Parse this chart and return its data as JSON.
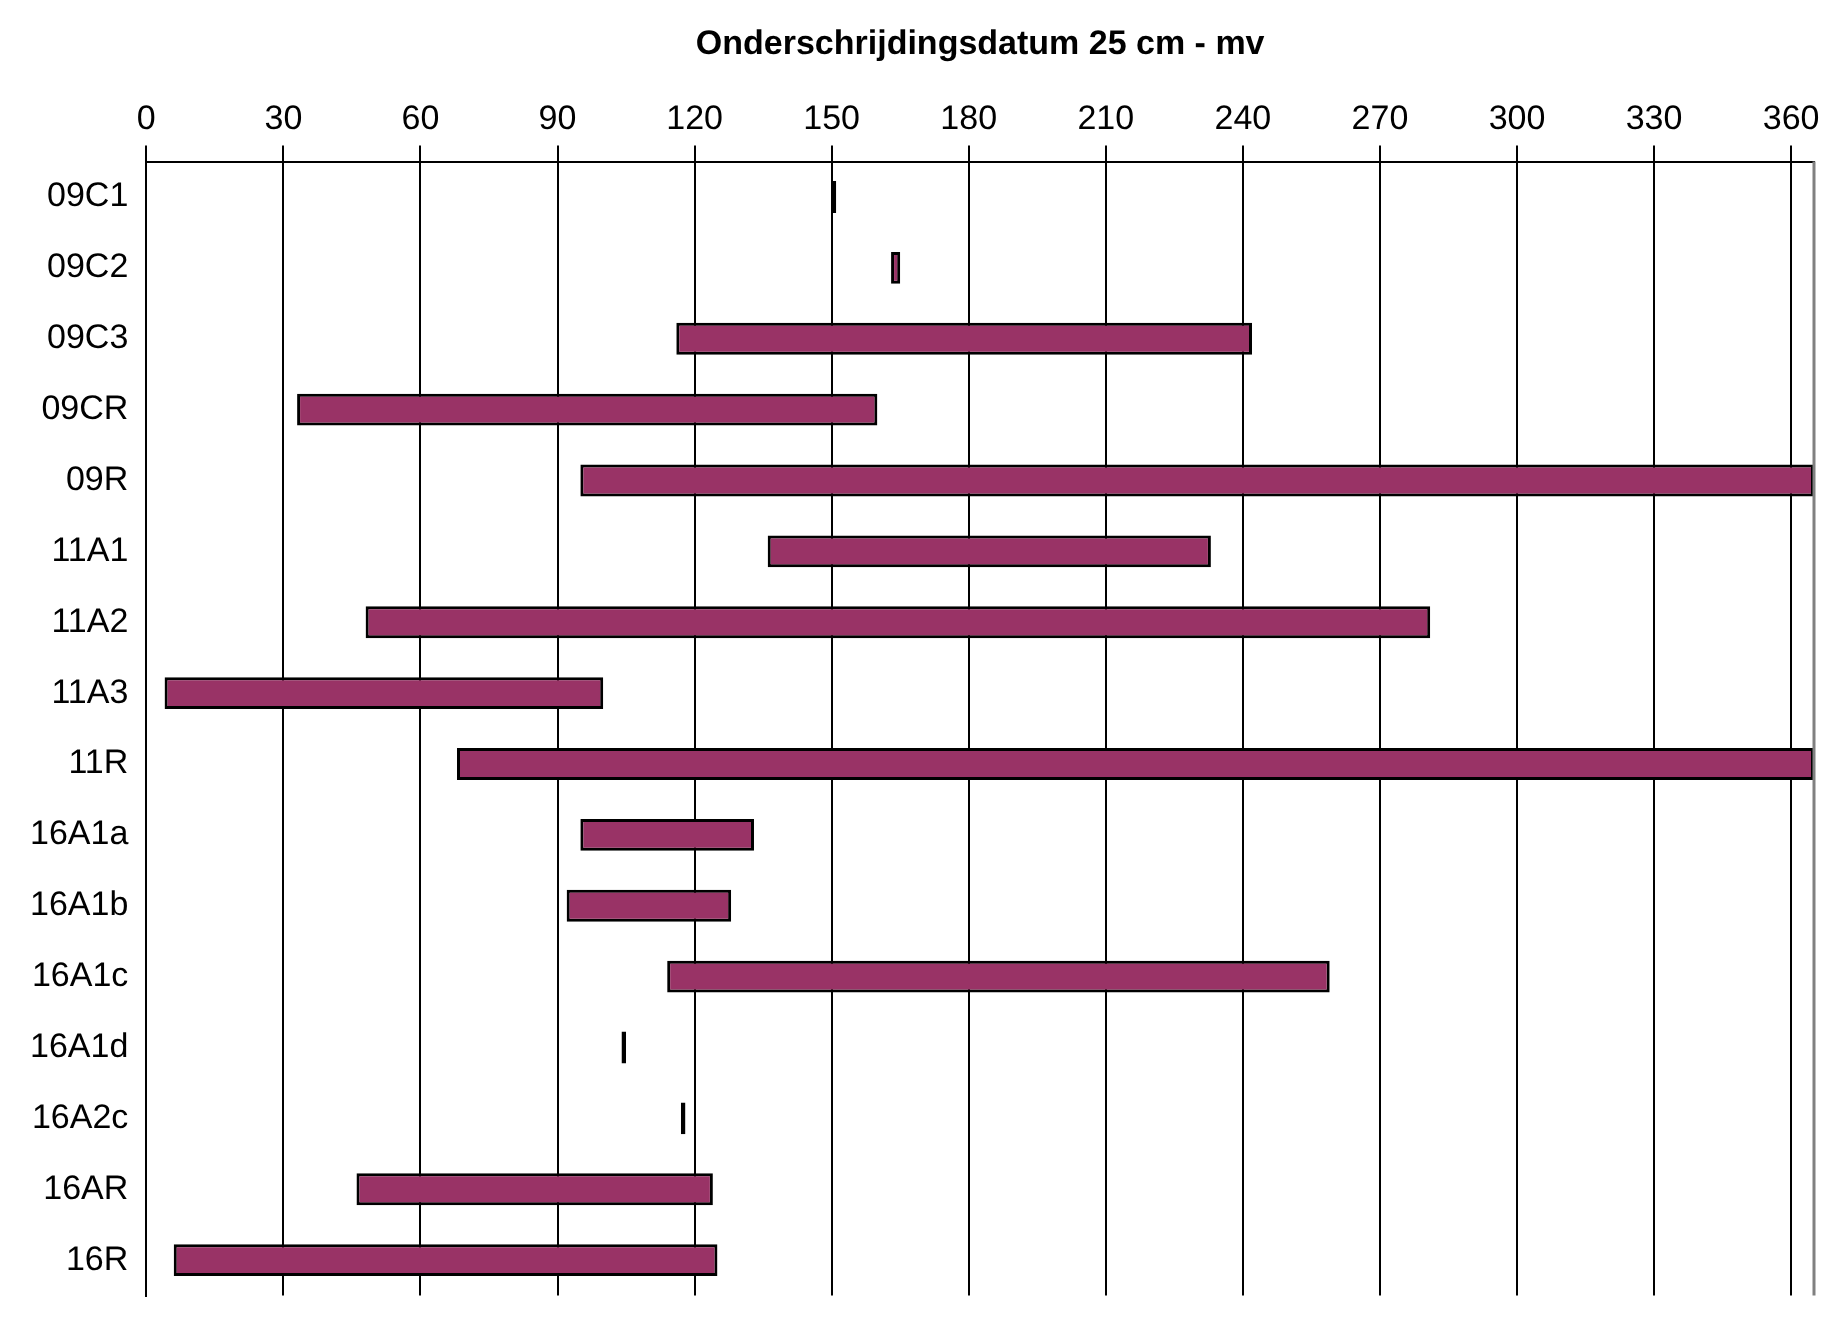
{
  "chart_data": {
    "type": "bar",
    "orientation": "horizontal",
    "xlabel": "Onderschrijdingsdatum 25 cm - mv",
    "categories": [
      "09C1",
      "09C2",
      "09C3",
      "09CR",
      "09R",
      "11A1",
      "11A2",
      "11A3",
      "11R",
      "16A1a",
      "16A1b",
      "16A1c",
      "16A1d",
      "16A2c",
      "16AR",
      "16R"
    ],
    "base": [
      150,
      163,
      116,
      33,
      95,
      136,
      48,
      4,
      68,
      95,
      92,
      114,
      104,
      117,
      46,
      6
    ],
    "values": [
      1,
      2,
      126,
      127,
      270,
      97,
      233,
      96,
      297,
      38,
      36,
      145,
      1,
      1,
      78,
      119
    ],
    "colors": [
      "#000000",
      "#993366",
      "#993366",
      "#993366",
      "#993366",
      "#993366",
      "#993366",
      "#993366",
      "#993366",
      "#993366",
      "#993366",
      "#993366",
      "#000000",
      "#000000",
      "#993366",
      "#993366"
    ],
    "xlim": [
      0,
      365
    ],
    "xticks": [
      0,
      30,
      60,
      90,
      120,
      150,
      180,
      210,
      240,
      270,
      300,
      330,
      360
    ],
    "grid": "x",
    "legend": false
  }
}
